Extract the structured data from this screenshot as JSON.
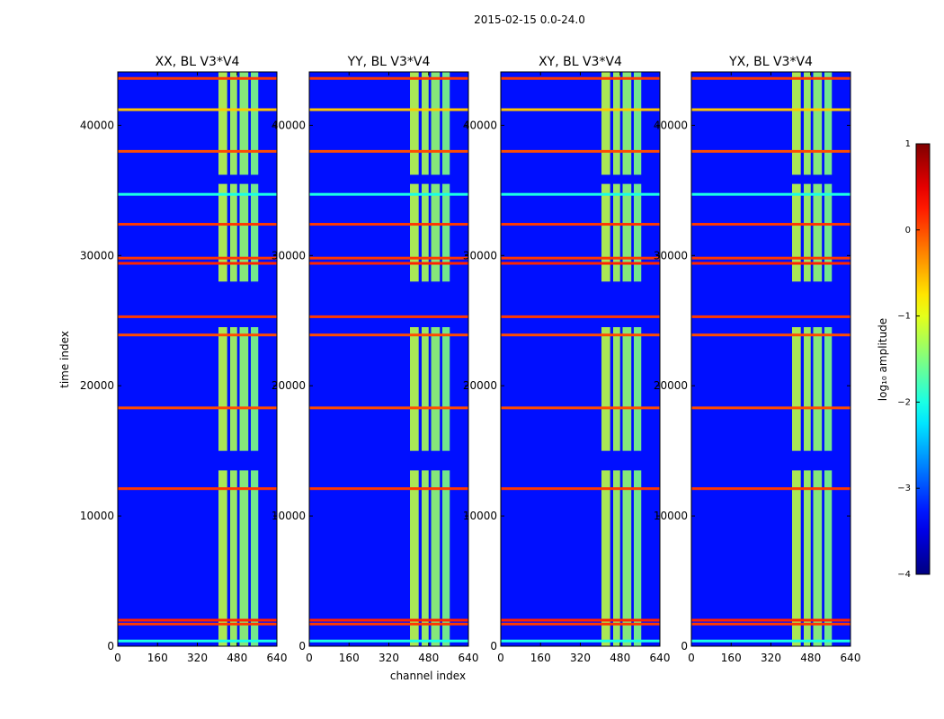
{
  "chart_data": {
    "type": "heatmap",
    "suptitle": "2015-02-15 0.0-24.0",
    "panels": [
      {
        "title": "XX, BL V3*V4",
        "pol": "XX"
      },
      {
        "title": "YY, BL V3*V4",
        "pol": "YY"
      },
      {
        "title": "XY, BL V3*V4",
        "pol": "XY"
      },
      {
        "title": "YX, BL V3*V4",
        "pol": "YX"
      }
    ],
    "xlabel": "channel index",
    "ylabel": "time index",
    "xlim": [
      0,
      640
    ],
    "ylim": [
      0,
      44100
    ],
    "xticks": [
      0,
      160,
      320,
      480,
      640
    ],
    "xtick_labels": [
      "0",
      "160",
      "320",
      "480",
      "640"
    ],
    "yticks": [
      0,
      10000,
      20000,
      30000,
      40000
    ],
    "ytick_labels": [
      "0",
      "10000",
      "20000",
      "30000",
      "40000"
    ],
    "colorbar": {
      "label": "log₁₀ amplitude",
      "range": [
        -4,
        1
      ],
      "ticks": [
        -4,
        -3,
        -2,
        -1,
        0,
        1
      ],
      "tick_labels": [
        "−4",
        "−3",
        "−2",
        "−1",
        "0",
        "1"
      ],
      "colormap": "jet"
    },
    "background_level": -3.3,
    "rfi_channel_bands": [
      {
        "start": 405,
        "end": 440,
        "level": -1.2
      },
      {
        "start": 452,
        "end": 480,
        "level": -1.3
      },
      {
        "start": 490,
        "end": 525,
        "level": -1.4
      },
      {
        "start": 535,
        "end": 565,
        "level": -1.5
      }
    ],
    "rfi_time_rows": [
      {
        "t": 400,
        "level": -2.0
      },
      {
        "t": 1700,
        "level": 0.1
      },
      {
        "t": 2000,
        "level": 0.2
      },
      {
        "t": 12100,
        "level": 0.1
      },
      {
        "t": 18300,
        "level": 0.0
      },
      {
        "t": 23900,
        "level": 0.0
      },
      {
        "t": 25300,
        "level": 0.1
      },
      {
        "t": 29400,
        "level": 0.2
      },
      {
        "t": 29800,
        "level": 0.1
      },
      {
        "t": 32400,
        "level": 0.1
      },
      {
        "t": 34700,
        "level": -2.0
      },
      {
        "t": 38000,
        "level": 0.0
      },
      {
        "t": 41200,
        "level": -0.6
      },
      {
        "t": 43600,
        "level": 0.1
      }
    ],
    "band_gaps": [
      {
        "start": 13500,
        "end": 15000
      },
      {
        "start": 24500,
        "end": 28000
      },
      {
        "start": 35500,
        "end": 36200
      }
    ]
  }
}
